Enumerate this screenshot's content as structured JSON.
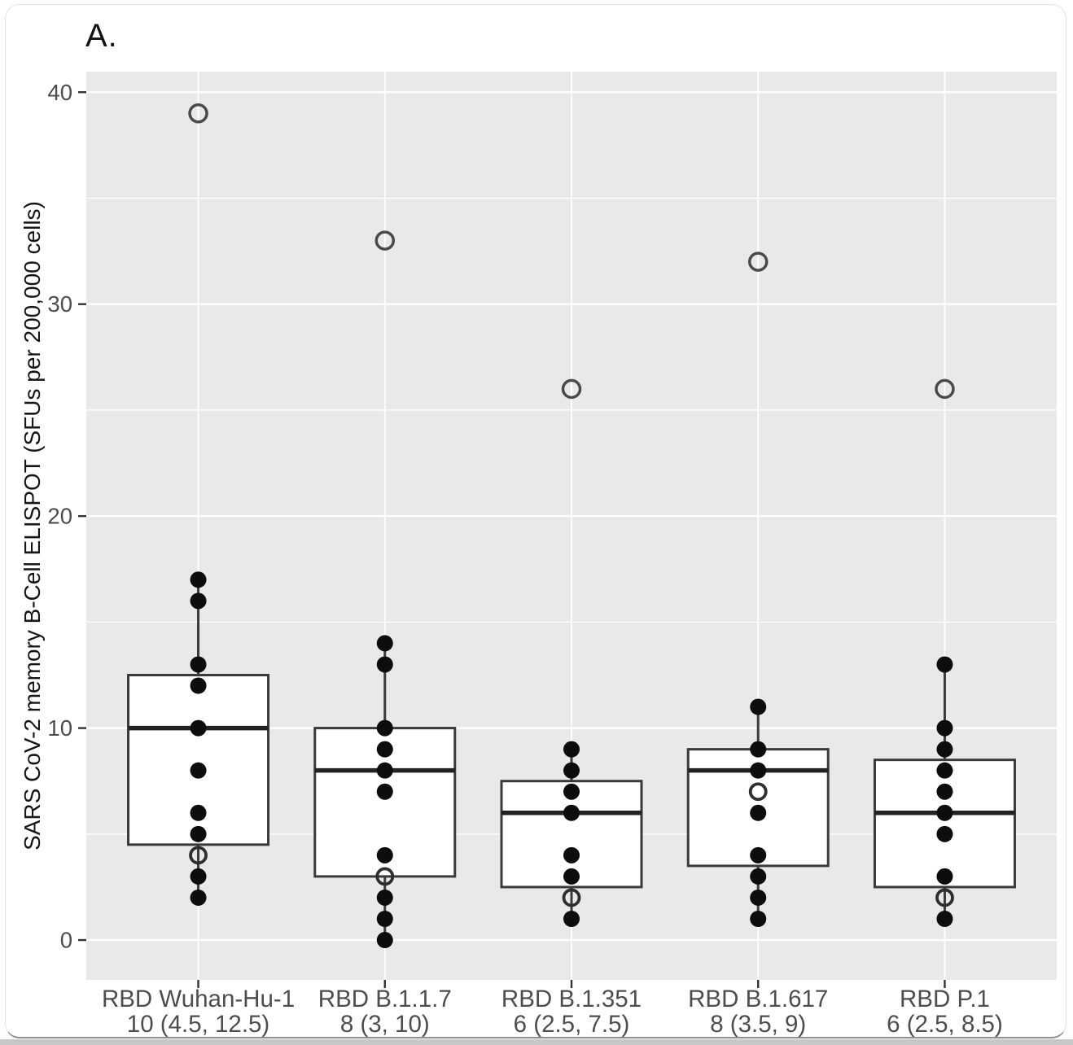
{
  "panel_label": "A.",
  "chart_data": {
    "type": "boxplot",
    "title": "A.",
    "ylabel": "SARS CoV-2 memory B-Cell ELISPOT (SFUs per 200,000 cells)",
    "xlabel": "",
    "ylim": [
      -1.88,
      40.97
    ],
    "yticks_major": [
      0,
      10,
      20,
      30,
      40
    ],
    "yticks_minor": [
      5,
      15,
      25,
      35
    ],
    "grid": "on",
    "legend": "none",
    "point_style_note": "filled = solid subject points, open = hollow circle points/outliers",
    "groups": [
      {
        "name": "RBD Wuhan-Hu-1",
        "stat_label": "10 (4.5, 12.5)",
        "median": 10,
        "q1": 4.5,
        "q3": 12.5,
        "whisker_low": 2,
        "whisker_high": 17,
        "points": [
          {
            "v": 17
          },
          {
            "v": 16
          },
          {
            "v": 13
          },
          {
            "v": 12
          },
          {
            "v": 10
          },
          {
            "v": 8
          },
          {
            "v": 6
          },
          {
            "v": 5
          },
          {
            "v": 4,
            "open": true
          },
          {
            "v": 3
          },
          {
            "v": 2
          }
        ],
        "outliers": [
          {
            "v": 39,
            "open": true
          }
        ]
      },
      {
        "name": "RBD B.1.1.7",
        "stat_label": "8 (3, 10)",
        "median": 8,
        "q1": 3,
        "q3": 10,
        "whisker_low": 0,
        "whisker_high": 14,
        "points": [
          {
            "v": 14
          },
          {
            "v": 13
          },
          {
            "v": 10
          },
          {
            "v": 9
          },
          {
            "v": 8
          },
          {
            "v": 7
          },
          {
            "v": 4
          },
          {
            "v": 3,
            "open": true
          },
          {
            "v": 2
          },
          {
            "v": 1
          },
          {
            "v": 0
          }
        ],
        "outliers": [
          {
            "v": 33,
            "open": true
          }
        ]
      },
      {
        "name": "RBD B.1.351",
        "stat_label": "6 (2.5, 7.5)",
        "median": 6,
        "q1": 2.5,
        "q3": 7.5,
        "whisker_low": 1,
        "whisker_high": 9,
        "points": [
          {
            "v": 9
          },
          {
            "v": 8
          },
          {
            "v": 7
          },
          {
            "v": 6
          },
          {
            "v": 4
          },
          {
            "v": 3
          },
          {
            "v": 2,
            "open": true
          },
          {
            "v": 1
          }
        ],
        "outliers": [
          {
            "v": 26,
            "open": true
          }
        ]
      },
      {
        "name": "RBD B.1.617",
        "stat_label": "8 (3.5, 9)",
        "median": 8,
        "q1": 3.5,
        "q3": 9,
        "whisker_low": 1,
        "whisker_high": 11,
        "points": [
          {
            "v": 11
          },
          {
            "v": 9
          },
          {
            "v": 8
          },
          {
            "v": 7,
            "open": true
          },
          {
            "v": 6
          },
          {
            "v": 4
          },
          {
            "v": 3
          },
          {
            "v": 2
          },
          {
            "v": 1
          }
        ],
        "outliers": [
          {
            "v": 32,
            "open": true
          }
        ]
      },
      {
        "name": "RBD P.1",
        "stat_label": "6 (2.5, 8.5)",
        "median": 6,
        "q1": 2.5,
        "q3": 8.5,
        "whisker_low": 1,
        "whisker_high": 13,
        "points": [
          {
            "v": 13
          },
          {
            "v": 10
          },
          {
            "v": 9
          },
          {
            "v": 8
          },
          {
            "v": 7
          },
          {
            "v": 6
          },
          {
            "v": 5
          },
          {
            "v": 3
          },
          {
            "v": 2,
            "open": true
          },
          {
            "v": 1
          }
        ],
        "outliers": [
          {
            "v": 26,
            "open": true
          }
        ]
      }
    ],
    "colors": {
      "panel_background": "#e9e9e9",
      "gridline": "#ffffff",
      "box_fill": "#ffffff",
      "box_border": "#3a3a3a",
      "median_line": "#222222",
      "point_fill": "#0d0d0d",
      "open_point_stroke": "#2e2e2e",
      "outlier_stroke": "#4a4a4a",
      "tick_text": "#4d4d4d",
      "axis_tick_mark": "#333333"
    }
  }
}
